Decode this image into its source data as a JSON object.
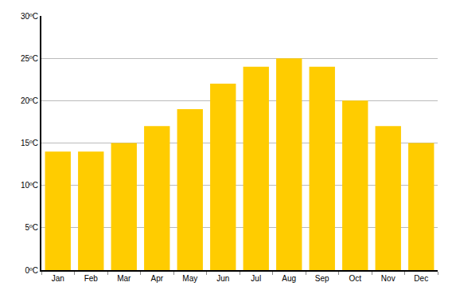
{
  "chart_data": {
    "type": "bar",
    "categories": [
      "Jan",
      "Feb",
      "Mar",
      "Apr",
      "May",
      "Jun",
      "Jul",
      "Aug",
      "Sep",
      "Oct",
      "Nov",
      "Dec"
    ],
    "values": [
      14,
      14,
      15,
      17,
      19,
      22,
      24,
      25,
      24,
      20,
      17,
      15
    ],
    "color": "#ffcc00",
    "ylim": [
      0,
      30
    ],
    "yticks": [
      {
        "value": 0,
        "label": "0ºC"
      },
      {
        "value": 5,
        "label": "5ºC"
      },
      {
        "value": 10,
        "label": "10ºC"
      },
      {
        "value": 15,
        "label": "15ºC"
      },
      {
        "value": 20,
        "label": "20ºC"
      },
      {
        "value": 25,
        "label": "25ºC"
      },
      {
        "value": 30,
        "label": "30ºC"
      }
    ],
    "grid": true
  }
}
